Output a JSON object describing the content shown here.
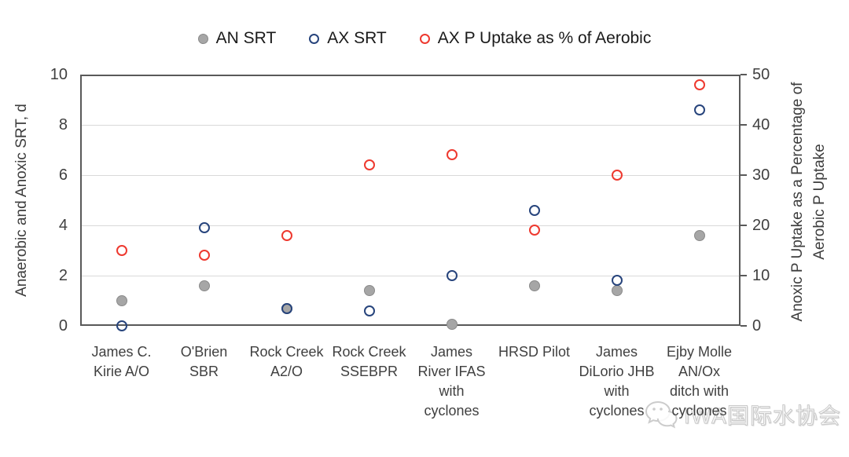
{
  "legend": {
    "items": [
      {
        "label": "AN SRT",
        "marker": "filled",
        "color": "#a6a6a6",
        "border": "#8a8a8a"
      },
      {
        "label": "AX SRT",
        "marker": "ring",
        "color": "#27447c"
      },
      {
        "label": "AX P Uptake as % of Aerobic",
        "marker": "ring",
        "color": "#ee392f"
      }
    ]
  },
  "left_axis": {
    "title": "Anaerobic and Anoxic SRT, d",
    "ticks": [
      0,
      2,
      4,
      6,
      8,
      10
    ],
    "range": [
      0,
      10
    ]
  },
  "right_axis": {
    "title_line1": "Anoxic P Uptake as a Percentage of",
    "title_line2": "Aerobic P Uptake",
    "ticks": [
      0,
      10,
      20,
      30,
      40,
      50
    ],
    "range": [
      0,
      50
    ]
  },
  "chart_data": {
    "type": "scatter",
    "title": "",
    "grid": "horizontal",
    "gridline_values_left_axis": [
      2,
      4,
      6,
      8
    ],
    "categories": [
      "James C.\nKirie A/O",
      "O'Brien\nSBR",
      "Rock Creek\nA2/O",
      "Rock Creek\nSSEBPR",
      "James\nRiver IFAS\nwith\ncyclones",
      "HRSD Pilot",
      "James\nDiLorio JHB\nwith\ncyclones",
      "Ejby Molle\nAN/Ox\nditch with\ncyclones"
    ],
    "series": [
      {
        "name": "AN SRT",
        "axis": "left",
        "marker": "filled",
        "color": "#a6a6a6",
        "border_color": "#8a8a8a",
        "values": [
          1.0,
          1.6,
          0.7,
          1.4,
          0.05,
          1.6,
          1.4,
          3.6
        ]
      },
      {
        "name": "AX SRT",
        "axis": "left",
        "marker": "ring",
        "color": "#27447c",
        "values": [
          0.0,
          3.9,
          0.7,
          0.6,
          2.0,
          4.6,
          1.8,
          8.6
        ]
      },
      {
        "name": "AX P Uptake as % of Aerobic",
        "axis": "right",
        "marker": "ring",
        "color": "#ee392f",
        "values": [
          15,
          14,
          18,
          32,
          34,
          19,
          30,
          48
        ]
      }
    ],
    "left_axis_range": [
      0,
      10
    ],
    "right_axis_range": [
      0,
      50
    ],
    "legend_position": "top"
  },
  "colors": {
    "frame": "#595959",
    "gridline": "#d9d9d9",
    "tick_text": "#404040"
  },
  "watermark": {
    "text": "IWA国际水协会",
    "icon": "wechat-chat-bubbles-icon"
  }
}
